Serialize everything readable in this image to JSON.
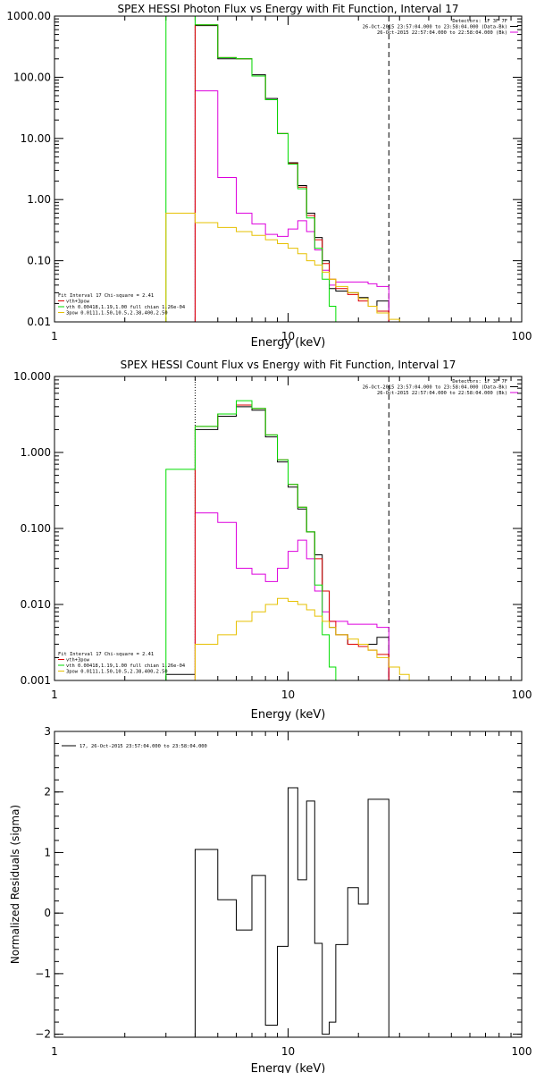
{
  "chart_data": [
    {
      "type": "line",
      "title": "SPEX HESSI Photon Flux vs Energy with Fit Function, Interval 17",
      "xlabel": "Energy (keV)",
      "ylabel": "",
      "xscale": "log",
      "yscale": "log",
      "xlim": [
        1,
        100
      ],
      "ylim": [
        0.01,
        1000
      ],
      "xticks": [
        "1",
        "10",
        "100"
      ],
      "yticks": [
        "0.01",
        "0.10",
        "1.00",
        "10.00",
        "100.00",
        "1000.00"
      ],
      "ytick_values": [
        0.01,
        0.1,
        1,
        10,
        100,
        1000
      ],
      "legend_top": [
        "Detectors: 1F 3F 7F",
        "26-Oct-2015 23:57:04.000 to 23:58:04.000 (Data-Bk)",
        "26-Oct-2015 22:57:04.000 to 22:58:04.000 (Bk)"
      ],
      "legend_top_colors": [
        "",
        "#000000",
        "#dd00dd"
      ],
      "legend_bottom": [
        "Fit Interval 17   Chi-square = 2.41",
        "vth+3pow",
        "vth 0.00418,1.19,1.00  full chian 1.26e-04",
        "3pow 0.0111,1.50,10.5,2.38,400,2.50"
      ],
      "legend_bottom_colors": [
        "",
        "#dd0000",
        "#00dd00",
        "#e6c000"
      ],
      "vlines": [
        {
          "x": 4,
          "style": "dotted",
          "color": "#dd00dd"
        },
        {
          "x": 27,
          "style": "dashed",
          "color": "#000000"
        }
      ],
      "edges": [
        3,
        4,
        5,
        6,
        7,
        8,
        9,
        10,
        11,
        12,
        13,
        14,
        15,
        16,
        18,
        20,
        22,
        24,
        27,
        30
      ],
      "series": [
        {
          "name": "",
          "color": "#000000",
          "values": [
            null,
            700,
            200,
            200,
            110,
            45,
            12,
            4,
            1.7,
            0.6,
            0.24,
            0.1,
            0.035,
            0.032,
            0.03,
            0.025,
            0.018,
            0.022,
            null
          ]
        },
        {
          "name": "",
          "color": "#dd00dd",
          "values": [
            null,
            60,
            2.3,
            0.6,
            0.4,
            0.27,
            0.25,
            0.33,
            0.45,
            0.3,
            0.15,
            0.07,
            0.04,
            0.045,
            0.045,
            0.045,
            0.042,
            0.038,
            null
          ]
        },
        {
          "name": "",
          "color": "#dd0000",
          "values": [
            null,
            720,
            210,
            200,
            105,
            43,
            12,
            3.9,
            1.6,
            0.55,
            0.22,
            0.09,
            0.05,
            0.035,
            0.028,
            0.022,
            0.018,
            0.015,
            null
          ]
        },
        {
          "name": "",
          "color": "#00dd00",
          "values": [
            1000,
            720,
            210,
            200,
            105,
            43,
            12,
            3.8,
            1.5,
            0.5,
            0.16,
            0.05,
            0.018,
            0.009,
            null,
            null,
            null,
            null,
            null
          ]
        },
        {
          "name": "",
          "color": "#e6c000",
          "values": [
            0.6,
            0.42,
            0.35,
            0.3,
            0.26,
            0.22,
            0.19,
            0.16,
            0.13,
            0.1,
            0.085,
            0.065,
            0.05,
            0.038,
            0.03,
            0.024,
            0.018,
            0.014,
            0.011
          ]
        }
      ]
    },
    {
      "type": "line",
      "title": "SPEX HESSI Count Flux vs Energy with Fit Function, Interval 17",
      "xlabel": "Energy (keV)",
      "ylabel": "",
      "xscale": "log",
      "yscale": "log",
      "xlim": [
        1,
        100
      ],
      "ylim": [
        0.001,
        10
      ],
      "xticks": [
        "1",
        "10",
        "100"
      ],
      "yticks": [
        "0.001",
        "0.010",
        "0.100",
        "1.000",
        "10.000"
      ],
      "ytick_values": [
        0.001,
        0.01,
        0.1,
        1,
        10
      ],
      "legend_top": [
        "Detectors: 1F 3F 7F",
        "26-Oct-2015 23:57:04.000 to 23:58:04.000 (Data-Bk)",
        "26-Oct-2015 22:57:04.000 to 22:58:04.000 (Bk)"
      ],
      "legend_top_colors": [
        "",
        "#000000",
        "#dd00dd"
      ],
      "legend_bottom": [
        "Fit Interval 17   Chi-square = 2.41",
        "vth+3pow",
        "vth 0.00418,1.19,1.00  full chian 1.26e-04",
        "3pow 0.0111,1.50,10.5,2.38,400,2.50"
      ],
      "legend_bottom_colors": [
        "",
        "#dd0000",
        "#00dd00",
        "#e6c000"
      ],
      "vlines": [
        {
          "x": 4,
          "style": "dotted",
          "color": "#000000"
        },
        {
          "x": 27,
          "style": "dashed",
          "color": "#000000"
        }
      ],
      "edges": [
        3,
        4,
        5,
        6,
        7,
        8,
        9,
        10,
        11,
        12,
        13,
        14,
        15,
        16,
        18,
        20,
        22,
        24,
        27,
        30,
        33,
        36
      ],
      "series": [
        {
          "name": "",
          "color": "#000000",
          "values": [
            0.0012,
            2.0,
            3.0,
            4.0,
            3.6,
            1.6,
            0.75,
            0.35,
            0.18,
            0.09,
            0.045,
            0.015,
            0.005,
            0.004,
            0.003,
            0.003,
            0.003,
            0.0037,
            null,
            null,
            null
          ]
        },
        {
          "name": "",
          "color": "#dd00dd",
          "values": [
            null,
            0.16,
            0.12,
            0.03,
            0.025,
            0.02,
            0.03,
            0.05,
            0.07,
            0.04,
            0.015,
            0.008,
            0.006,
            0.006,
            0.0055,
            0.0055,
            0.0055,
            0.005,
            null,
            null,
            null
          ]
        },
        {
          "name": "",
          "color": "#dd0000",
          "values": [
            null,
            2.2,
            3.2,
            4.2,
            3.8,
            1.7,
            0.8,
            0.38,
            0.19,
            0.09,
            0.04,
            0.015,
            0.006,
            0.004,
            0.003,
            0.0028,
            0.0025,
            0.0022,
            null,
            null,
            null
          ]
        },
        {
          "name": "",
          "color": "#00dd00",
          "values": [
            0.6,
            2.2,
            3.2,
            4.8,
            3.8,
            1.7,
            0.8,
            0.38,
            0.19,
            0.09,
            0.018,
            0.004,
            0.0015,
            null,
            null,
            null,
            null,
            null,
            null,
            null,
            null
          ]
        },
        {
          "name": "",
          "color": "#e6c000",
          "values": [
            null,
            0.003,
            0.004,
            0.006,
            0.008,
            0.01,
            0.012,
            0.011,
            0.01,
            0.0085,
            0.007,
            0.006,
            0.005,
            0.004,
            0.0035,
            0.003,
            0.0025,
            0.002,
            0.0015,
            0.0012,
            0.0009
          ]
        }
      ]
    },
    {
      "type": "line",
      "title": "",
      "xlabel": "Energy (keV)",
      "ylabel": "Normalized Residuals (sigma)",
      "xscale": "log",
      "yscale": "linear",
      "xlim": [
        1,
        100
      ],
      "ylim": [
        -2.05,
        3.0
      ],
      "xticks": [
        "1",
        "10",
        "100"
      ],
      "yticks": [
        "−2",
        "−1",
        "0",
        "1",
        "2",
        "3"
      ],
      "ytick_values": [
        -2,
        -1,
        0,
        1,
        2,
        3
      ],
      "legend_top": [
        "17, 26-Oct-2015 23:57:04.000 to 23:58:04.000"
      ],
      "legend_top_colors": [
        "#000000"
      ],
      "edges": [
        4,
        5,
        6,
        7,
        8,
        9,
        10,
        11,
        12,
        13,
        14,
        15,
        16,
        18,
        20,
        22,
        24,
        27
      ],
      "series": [
        {
          "name": "",
          "color": "#000000",
          "values": [
            1.05,
            0.22,
            -0.28,
            0.62,
            -1.85,
            -0.55,
            2.07,
            0.55,
            1.85,
            -0.5,
            -2.0,
            -1.8,
            -0.52,
            0.42,
            0.15,
            1.88,
            1.88
          ]
        }
      ]
    }
  ]
}
